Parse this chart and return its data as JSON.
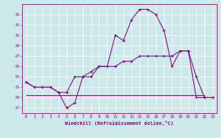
{
  "xlabel": "Windchill (Refroidissement éolien,°C)",
  "bg_color": "#cce8e8",
  "line_color": "#800080",
  "grid_color": "#ffffff",
  "x_ticks": [
    0,
    1,
    2,
    3,
    4,
    5,
    6,
    7,
    8,
    9,
    10,
    11,
    12,
    13,
    14,
    15,
    16,
    17,
    18,
    19,
    20,
    21,
    22,
    23
  ],
  "y_ticks": [
    17,
    19,
    21,
    23,
    25,
    27,
    29,
    31,
    33,
    35
  ],
  "ylim": [
    16,
    37
  ],
  "xlim": [
    -0.5,
    23.5
  ],
  "line1_x": [
    0,
    1,
    2,
    3,
    4,
    5,
    6,
    7,
    8,
    9,
    10,
    11,
    12,
    13,
    14,
    15,
    16,
    17,
    18,
    19,
    20,
    21,
    22,
    23
  ],
  "line1_y": [
    22,
    21,
    21,
    21,
    20,
    17,
    18,
    23,
    23,
    25,
    25,
    31,
    30,
    34,
    36,
    36,
    35,
    32,
    25,
    28,
    28,
    23,
    19,
    19
  ],
  "line2_x": [
    0,
    1,
    2,
    3,
    4,
    5,
    6,
    7,
    8,
    9,
    10,
    11,
    12,
    13,
    14,
    15,
    16,
    17,
    18,
    19,
    20,
    21,
    22,
    23
  ],
  "line2_y": [
    22,
    21,
    21,
    21,
    20,
    20,
    23,
    23,
    24,
    25,
    25,
    25,
    26,
    26,
    27,
    27,
    27,
    27,
    27,
    28,
    28,
    19,
    19,
    19
  ],
  "line3_x": [
    0,
    22
  ],
  "line3_y": [
    19.5,
    19.5
  ],
  "marker": "+",
  "markersize": 3,
  "linewidth": 0.8,
  "tick_fontsize": 4.2,
  "xlabel_fontsize": 5.0
}
